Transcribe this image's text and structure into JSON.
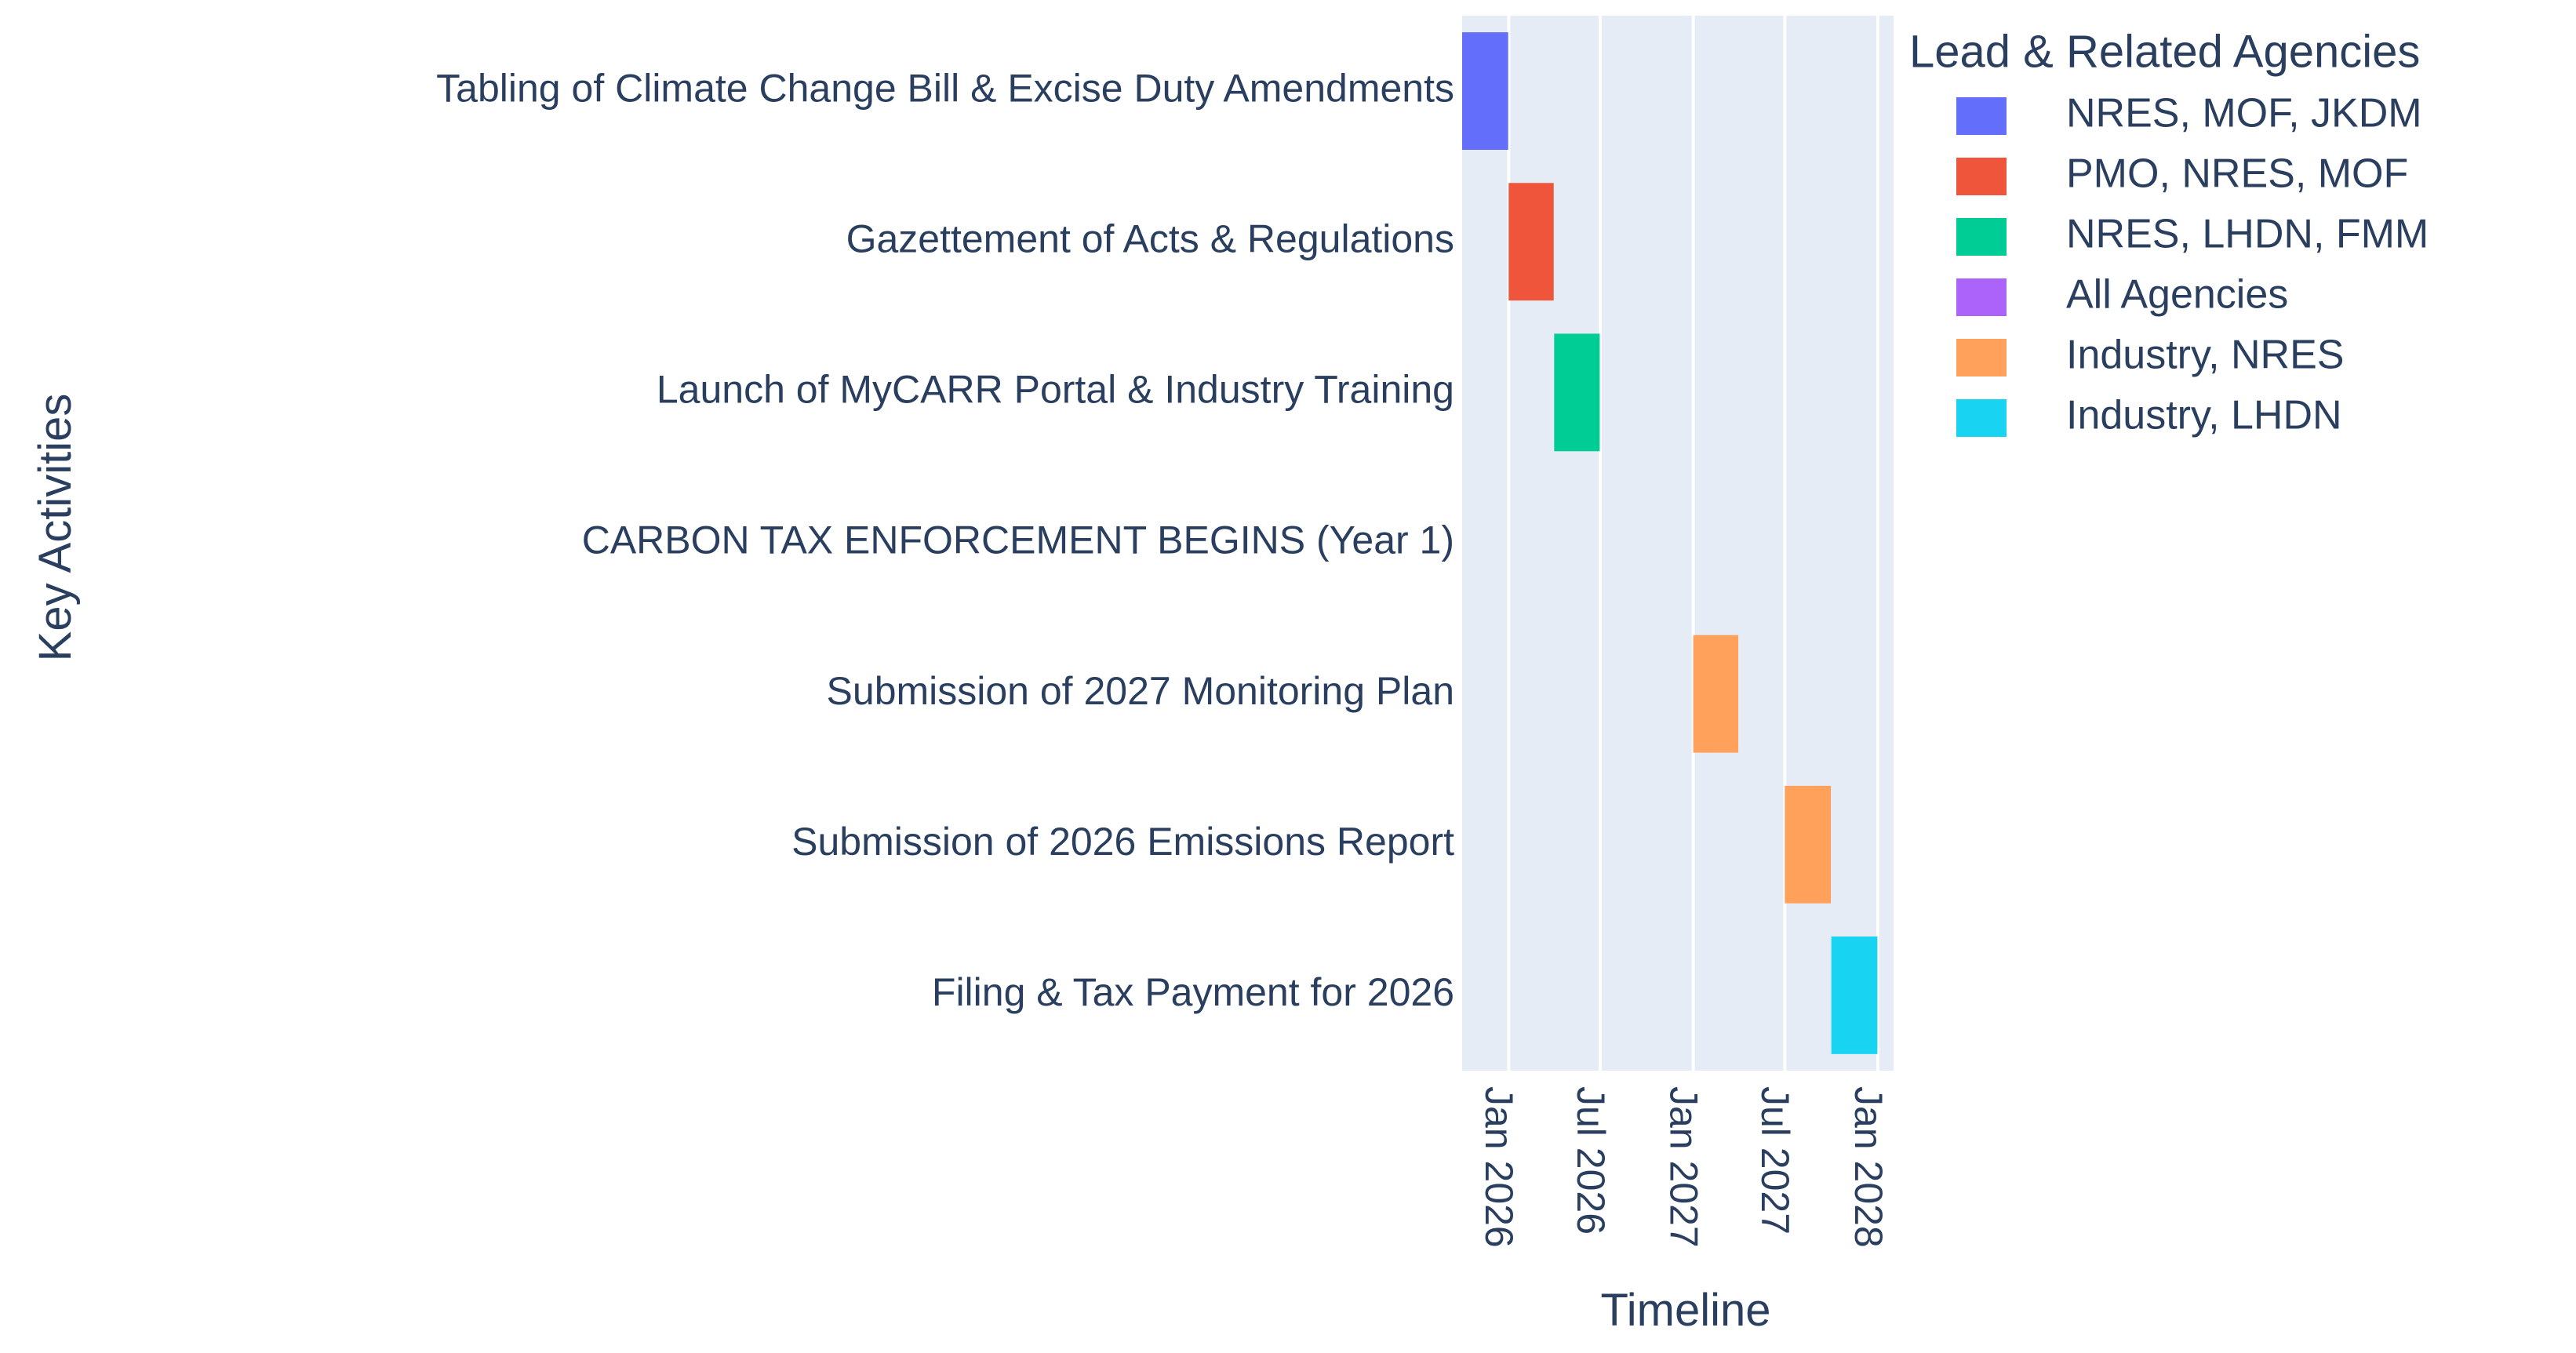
{
  "chart_data": {
    "type": "bar",
    "orientation": "horizontal",
    "subtype": "gantt",
    "xlabel": "Timeline",
    "ylabel": "Key Activities",
    "x_tick_labels": [
      "Jan 2026",
      "Jul 2026",
      "Jan 2027",
      "Jul 2027",
      "Jan 2028"
    ],
    "x_tick_values": [
      "2026-01-01",
      "2026-07-01",
      "2027-01-01",
      "2027-07-01",
      "2028-01-01"
    ],
    "xlim": [
      "2025-10-01",
      "2028-02-01"
    ],
    "grid": true,
    "legend_title": "Lead & Related Agencies",
    "legend_position": "right",
    "categories": [
      "Tabling of Climate Change Bill & Excise Duty Amendments",
      "Gazettement of Acts & Regulations",
      "Launch of MyCARR Portal & Industry Training",
      "CARBON TAX ENFORCEMENT BEGINS (Year 1)",
      "Submission of 2027 Monitoring Plan",
      "Submission of 2026 Emissions Report",
      "Filing & Tax Payment for 2026"
    ],
    "series": [
      {
        "name": "NRES, MOF, JKDM",
        "color": "#636EFA",
        "bars": [
          {
            "category": "Tabling of Climate Change Bill & Excise Duty Amendments",
            "start": "2025-10-01",
            "end": "2025-12-31"
          }
        ]
      },
      {
        "name": "PMO, NRES, MOF",
        "color": "#EF553B",
        "bars": [
          {
            "category": "Gazettement of Acts & Regulations",
            "start": "2026-01-01",
            "end": "2026-03-31"
          }
        ]
      },
      {
        "name": "NRES, LHDN, FMM",
        "color": "#00CC96",
        "bars": [
          {
            "category": "Launch of MyCARR Portal & Industry Training",
            "start": "2026-04-01",
            "end": "2026-06-30"
          }
        ]
      },
      {
        "name": "All Agencies",
        "color": "#AB63FA",
        "bars": []
      },
      {
        "name": "Industry, NRES",
        "color": "#FFA15A",
        "bars": [
          {
            "category": "Submission of 2027 Monitoring Plan",
            "start": "2027-01-01",
            "end": "2027-03-31"
          },
          {
            "category": "Submission of 2026 Emissions Report",
            "start": "2027-07-01",
            "end": "2027-09-30"
          }
        ]
      },
      {
        "name": "Industry, LHDN",
        "color": "#19D3F3",
        "bars": [
          {
            "category": "Filing & Tax Payment for 2026",
            "start": "2027-10-01",
            "end": "2027-12-31"
          }
        ]
      }
    ],
    "colors": {
      "plot_bg": "#E5ECF6",
      "grid": "#FFFFFF",
      "text": "#2A3F5F"
    }
  }
}
